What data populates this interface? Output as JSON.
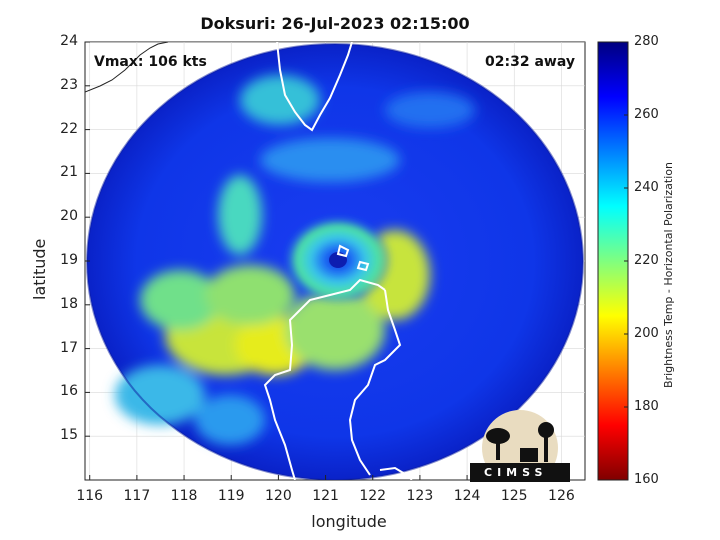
{
  "title": "Doksuri: 26-Jul-2023 02:15:00",
  "vmax_label": "Vmax: 106 kts",
  "time_away": "02:32 away",
  "xaxis": {
    "label": "longitude",
    "ticks": [
      "116",
      "117",
      "118",
      "119",
      "120",
      "121",
      "122",
      "123",
      "124",
      "125",
      "126"
    ],
    "range": [
      115.9,
      126.5
    ]
  },
  "yaxis": {
    "label": "latitude",
    "ticks": [
      "24",
      "23",
      "22",
      "21",
      "20",
      "19",
      "18",
      "17",
      "16",
      "15"
    ],
    "range": [
      14.0,
      24.0
    ]
  },
  "colorbar": {
    "title": "Brightness Temp - Horizontal Polarization",
    "ticks": [
      "280",
      "260",
      "240",
      "220",
      "200",
      "180",
      "160"
    ],
    "range": [
      160,
      280
    ],
    "colormap": "jet"
  },
  "storm_center": {
    "lon": 121.3,
    "lat": 19.0
  },
  "logo": {
    "text": "CIMSS"
  },
  "colors": {
    "background_scan": "#0a2fd8",
    "cold_convection": "#d8e600",
    "coastline": "#ffffff"
  }
}
